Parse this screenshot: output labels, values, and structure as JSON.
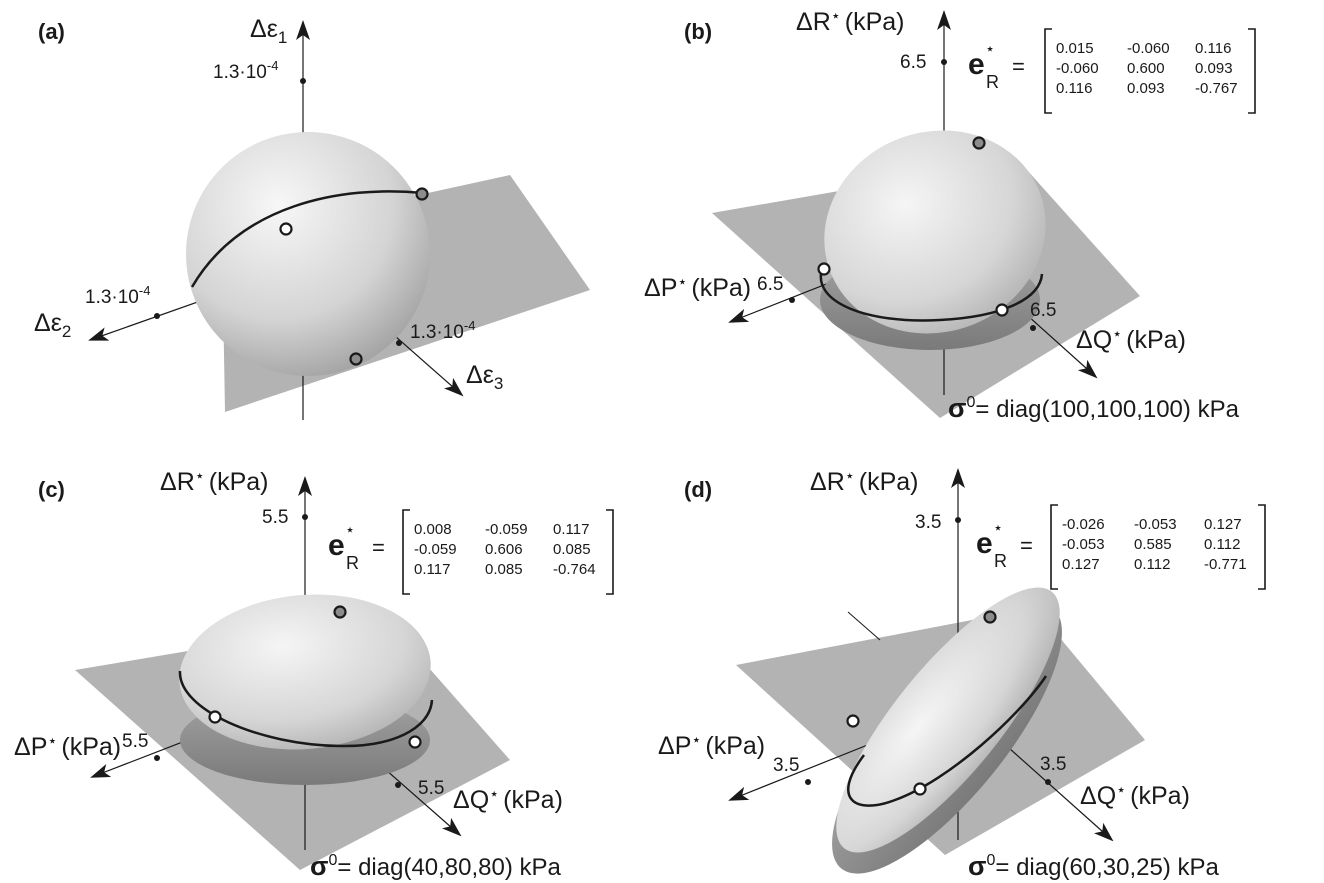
{
  "panels": [
    {
      "letter": "(a)",
      "axes": {
        "vertical": "Δε",
        "vertical_sub": "1",
        "left": "Δε",
        "left_sub": "2",
        "right": "Δε",
        "right_sub": "3"
      },
      "ticks": {
        "vertical_base": "1.3·10",
        "vertical_exp": "-4",
        "left_base": "1.3·10",
        "left_exp": "-4",
        "right_base": "1.3·10",
        "right_exp": "-4"
      }
    },
    {
      "letter": "(b)",
      "axes": {
        "vertical": "ΔR",
        "left": "ΔP",
        "right": "ΔQ",
        "star": "⋆",
        "unit": "(kPa)"
      },
      "ticks": {
        "vertical": "6.5",
        "left": "6.5",
        "right": "6.5"
      },
      "matrix_label": {
        "e": "e",
        "star": "⋆",
        "sub": "R",
        "equals": "="
      },
      "matrix": [
        [
          "0.015",
          "-0.060",
          "0.116"
        ],
        [
          "-0.060",
          "0.600",
          "0.093"
        ],
        [
          "0.116",
          "0.093",
          "-0.767"
        ]
      ],
      "sigma": {
        "symbol": "σ",
        "sup": "0",
        "text": "= diag(100,100,100) kPa"
      }
    },
    {
      "letter": "(c)",
      "axes": {
        "vertical": "ΔR",
        "left": "ΔP",
        "right": "ΔQ",
        "star": "⋆",
        "unit": "(kPa)"
      },
      "ticks": {
        "vertical": "5.5",
        "left": "5.5",
        "right": "5.5"
      },
      "matrix_label": {
        "e": "e",
        "star": "⋆",
        "sub": "R",
        "equals": "="
      },
      "matrix": [
        [
          "0.008",
          "-0.059",
          "0.117"
        ],
        [
          "-0.059",
          "0.606",
          "0.085"
        ],
        [
          "0.117",
          "0.085",
          "-0.764"
        ]
      ],
      "sigma": {
        "symbol": "σ",
        "sup": "0",
        "text": "= diag(40,80,80) kPa"
      }
    },
    {
      "letter": "(d)",
      "axes": {
        "vertical": "ΔR",
        "left": "ΔP",
        "right": "ΔQ",
        "star": "⋆",
        "unit": "(kPa)"
      },
      "ticks": {
        "vertical": "3.5",
        "left": "3.5",
        "right": "3.5"
      },
      "matrix_label": {
        "e": "e",
        "star": "⋆",
        "sub": "R",
        "equals": "="
      },
      "matrix": [
        [
          "-0.026",
          "-0.053",
          "0.127"
        ],
        [
          "-0.053",
          "0.585",
          "0.112"
        ],
        [
          "0.127",
          "0.112",
          "-0.771"
        ]
      ],
      "sigma": {
        "symbol": "σ",
        "sup": "0",
        "text": "= diag(60,30,25) kPa"
      }
    }
  ],
  "colors": {
    "plane": "#b3b3b3",
    "surface_light": "#f2f2f2",
    "surface_dark": "#8a8a8a",
    "marker_filled": "#8c8c8c",
    "marker_open": "#ffffff",
    "ink": "#1a1a1a"
  }
}
